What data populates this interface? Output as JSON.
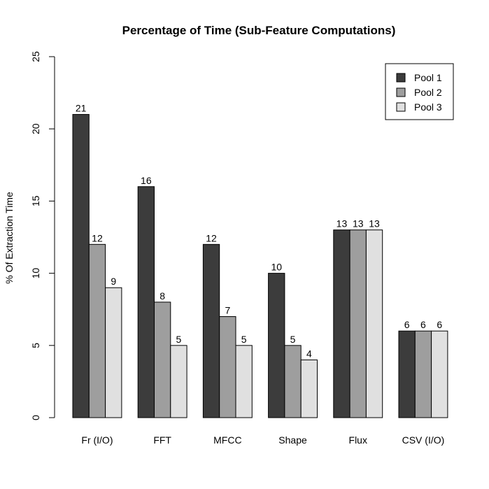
{
  "chart_data": {
    "type": "bar",
    "title": "Percentage of Time (Sub-Feature Computations)",
    "xlabel": "",
    "ylabel": "% Of Extraction Time",
    "ylim": [
      0,
      25
    ],
    "yticks": [
      0,
      5,
      10,
      15,
      20,
      25
    ],
    "grid": false,
    "legend_position": "top-right",
    "categories": [
      "Fr (I/O)",
      "FFT",
      "MFCC",
      "Shape",
      "Flux",
      "CSV (I/O)"
    ],
    "series": [
      {
        "name": "Pool 1",
        "color": "#3c3c3c",
        "values": [
          21,
          16,
          12,
          10,
          13,
          6
        ]
      },
      {
        "name": "Pool 2",
        "color": "#9e9e9e",
        "values": [
          12,
          8,
          7,
          5,
          13,
          6
        ]
      },
      {
        "name": "Pool 3",
        "color": "#e0e0e0",
        "values": [
          9,
          5,
          5,
          4,
          13,
          6
        ]
      }
    ]
  }
}
